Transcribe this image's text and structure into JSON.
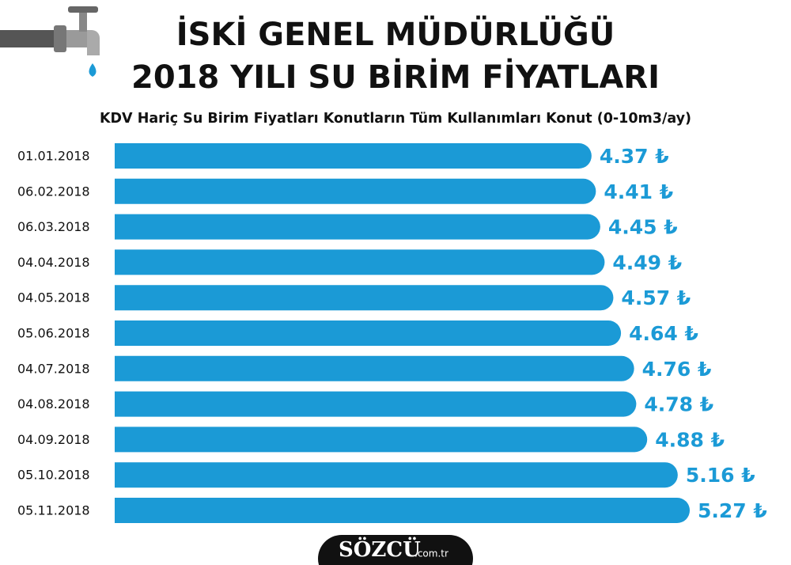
{
  "chart_data": {
    "type": "bar",
    "orientation": "horizontal",
    "title": [
      "İSKİ GENEL MÜDÜRLÜĞÜ",
      "2018 YILI SU BİRİM FİYATLARI"
    ],
    "subtitle": "KDV Hariç Su Birim Fiyatları Konutların Tüm Kullanımları Konut (0-10m3/ay)",
    "categories": [
      "01.01.2018",
      "06.02.2018",
      "06.03.2018",
      "04.04.2018",
      "04.05.2018",
      "05.06.2018",
      "04.07.2018",
      "04.08.2018",
      "04.09.2018",
      "05.10.2018",
      "05.11.2018"
    ],
    "values": [
      4.37,
      4.41,
      4.45,
      4.49,
      4.57,
      4.64,
      4.76,
      4.78,
      4.88,
      5.16,
      5.27
    ],
    "value_labels": [
      "4.37 ₺",
      "4.41 ₺",
      "4.45 ₺",
      "4.49 ₺",
      "4.57 ₺",
      "4.64 ₺",
      "4.76 ₺",
      "4.78 ₺",
      "4.88 ₺",
      "5.16 ₺",
      "5.27 ₺"
    ],
    "color": "#1b9ad6",
    "source": {
      "name": "SÖZCÜ",
      "domain": ".com.tr"
    }
  }
}
